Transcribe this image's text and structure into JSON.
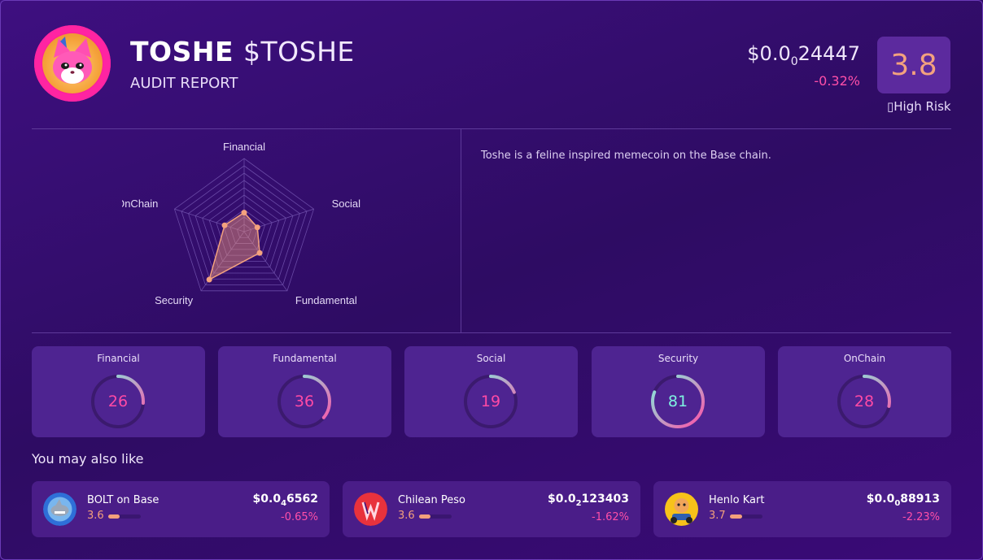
{
  "header": {
    "name": "TOSHE",
    "symbol": "$TOSHE",
    "subtitle": "AUDIT REPORT",
    "price_prefix": "$0.0",
    "price_zeros": "0",
    "price_digits": "24447",
    "change": "-0.32%",
    "score": "3.8",
    "risk_label": "High Risk",
    "logo_icon": "pink-cat-logo-icon"
  },
  "radar": {
    "labels": [
      "Financial",
      "Social",
      "Fundamental",
      "Security",
      "OnChain"
    ],
    "values": [
      26,
      19,
      36,
      81,
      28
    ],
    "max": 100
  },
  "description": "Toshe is a feline inspired memecoin on the Base chain.",
  "scores": [
    {
      "label": "Financial",
      "value": 26
    },
    {
      "label": "Fundamental",
      "value": 36
    },
    {
      "label": "Social",
      "value": 19
    },
    {
      "label": "Security",
      "value": 81
    },
    {
      "label": "OnChain",
      "value": 28
    }
  ],
  "also_like_title": "You may also like",
  "similar": [
    {
      "name": "BOLT on Base",
      "score": "3.6",
      "score_value": 3.6,
      "price_prefix": "$0.0",
      "price_zeros": "4",
      "price_digits": "6562",
      "change": "-0.65%",
      "icon": "bolt-shark-icon"
    },
    {
      "name": "Chilean Peso",
      "score": "3.6",
      "score_value": 3.6,
      "price_prefix": "$0.0",
      "price_zeros": "2",
      "price_digits": "123403",
      "change": "-1.62%",
      "icon": "chilean-peso-icon"
    },
    {
      "name": "Henlo Kart",
      "score": "3.7",
      "score_value": 3.7,
      "price_prefix": "$0.0",
      "price_zeros": "0",
      "price_digits": "88913",
      "change": "-2.23%",
      "icon": "henlo-kart-icon"
    }
  ],
  "colors": {
    "accent_pink": "#ff4fa8",
    "score_orange": "#f4a27e",
    "teal": "#7ef2e0"
  }
}
